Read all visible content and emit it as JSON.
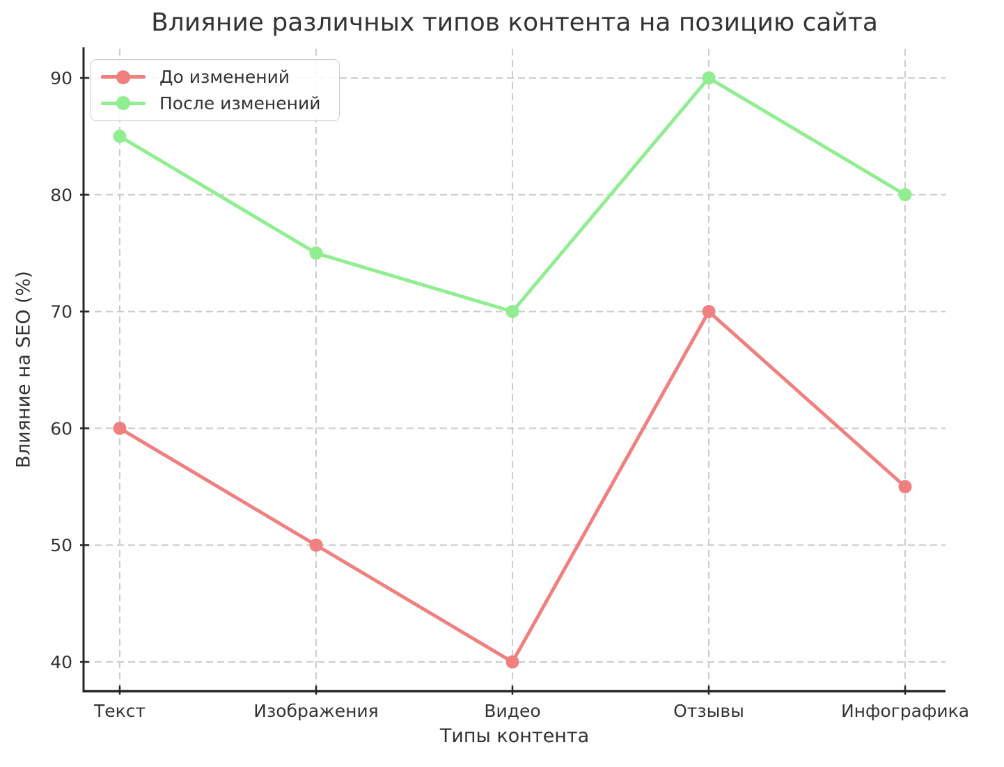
{
  "chart_data": {
    "type": "line",
    "title": "Влияние различных типов контента на позицию сайта",
    "xlabel": "Типы контента",
    "ylabel": "Влияние на SEO (%)",
    "categories": [
      "Текст",
      "Изображения",
      "Видео",
      "Отзывы",
      "Инфографика"
    ],
    "series": [
      {
        "name": "До изменений",
        "color": "#f08080",
        "values": [
          60,
          50,
          40,
          70,
          55
        ]
      },
      {
        "name": "После изменений",
        "color": "#90ee90",
        "values": [
          85,
          75,
          70,
          90,
          80
        ]
      }
    ],
    "ylim": [
      37.5,
      92.5
    ],
    "yticks": [
      40,
      50,
      60,
      70,
      80,
      90
    ],
    "grid": "dashed",
    "legend_position": "upper-left"
  },
  "colors": {
    "background": "#ffffff",
    "text": "#333333",
    "spine": "#262626",
    "grid": "#cccccc"
  }
}
